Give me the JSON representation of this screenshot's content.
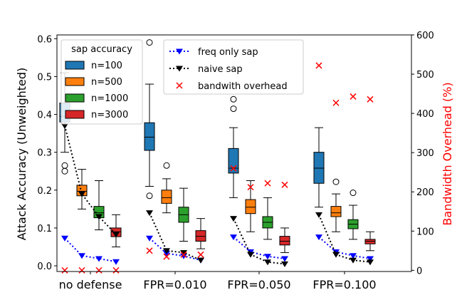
{
  "chart_data": {
    "type": "box",
    "categories": [
      "no defense",
      "FPR=0.010",
      "FPR=0.050",
      "FPR=0.100"
    ],
    "ylabel": "Attack Accuracy (Unweighted)",
    "y2label": "Bandwidth Overhead (%)",
    "ylim": [
      -0.015,
      0.61
    ],
    "y2lim": [
      -3,
      600
    ],
    "yticks": [
      "0.0",
      "0.1",
      "0.2",
      "0.3",
      "0.4",
      "0.5",
      "0.6"
    ],
    "y2ticks": [
      "0",
      "100",
      "200",
      "300",
      "400",
      "500",
      "600"
    ],
    "legend_box_title": "sap accuracy",
    "box_series": [
      {
        "name": "n=100",
        "color": "#1f77b4",
        "boxes": [
          {
            "whislo": 0.3,
            "q1": 0.38,
            "med": 0.395,
            "q3": 0.43,
            "whishi": 0.51,
            "fliers": [
              0.25,
              0.265
            ]
          },
          {
            "whislo": 0.21,
            "q1": 0.305,
            "med": 0.34,
            "q3": 0.378,
            "whishi": 0.48,
            "fliers": [
              0.185,
              0.59
            ]
          },
          {
            "whislo": 0.18,
            "q1": 0.245,
            "med": 0.258,
            "q3": 0.31,
            "whishi": 0.365,
            "fliers": [
              0.415,
              0.44
            ]
          },
          {
            "whislo": 0.155,
            "q1": 0.218,
            "med": 0.258,
            "q3": 0.3,
            "whishi": 0.365,
            "fliers": []
          }
        ]
      },
      {
        "name": "n=500",
        "color": "#ff7f0e",
        "boxes": [
          {
            "whislo": 0.15,
            "q1": 0.185,
            "med": 0.197,
            "q3": 0.213,
            "whishi": 0.255,
            "fliers": []
          },
          {
            "whislo": 0.14,
            "q1": 0.165,
            "med": 0.18,
            "q3": 0.2,
            "whishi": 0.23,
            "fliers": [
              0.265
            ]
          },
          {
            "whislo": 0.09,
            "q1": 0.138,
            "med": 0.155,
            "q3": 0.175,
            "whishi": 0.225,
            "fliers": []
          },
          {
            "whislo": 0.09,
            "q1": 0.13,
            "med": 0.14,
            "q3": 0.157,
            "whishi": 0.19,
            "fliers": [
              0.222
            ]
          }
        ]
      },
      {
        "name": "n=1000",
        "color": "#2ca02c",
        "boxes": [
          {
            "whislo": 0.095,
            "q1": 0.127,
            "med": 0.14,
            "q3": 0.157,
            "whishi": 0.225,
            "fliers": []
          },
          {
            "whislo": 0.065,
            "q1": 0.115,
            "med": 0.135,
            "q3": 0.155,
            "whishi": 0.205,
            "fliers": []
          },
          {
            "whislo": 0.07,
            "q1": 0.1,
            "med": 0.115,
            "q3": 0.13,
            "whishi": 0.18,
            "fliers": []
          },
          {
            "whislo": 0.07,
            "q1": 0.098,
            "med": 0.11,
            "q3": 0.122,
            "whishi": 0.16,
            "fliers": [
              0.193
            ]
          }
        ]
      },
      {
        "name": "n=3000",
        "color": "#d62728",
        "boxes": [
          {
            "whislo": 0.05,
            "q1": 0.077,
            "med": 0.09,
            "q3": 0.1,
            "whishi": 0.135,
            "fliers": []
          },
          {
            "whislo": 0.045,
            "q1": 0.065,
            "med": 0.078,
            "q3": 0.093,
            "whishi": 0.125,
            "fliers": []
          },
          {
            "whislo": 0.035,
            "q1": 0.055,
            "med": 0.065,
            "q3": 0.078,
            "whishi": 0.1,
            "fliers": []
          },
          {
            "whislo": 0.04,
            "q1": 0.058,
            "med": 0.065,
            "q3": 0.07,
            "whishi": 0.09,
            "fliers": []
          }
        ]
      }
    ],
    "line_series": [
      {
        "name": "freq only sap",
        "color": "#0000ff",
        "marker": "triangle-down",
        "values": [
          [
            0.073,
            0.027,
            0.019,
            0.011
          ],
          [
            0.073,
            0.033,
            0.026,
            0.015
          ],
          [
            0.076,
            0.037,
            0.025,
            0.019
          ],
          [
            0.076,
            0.037,
            0.027,
            0.019
          ]
        ]
      },
      {
        "name": "naive sap",
        "color": "#000000",
        "marker": "triangle-down",
        "values": [
          [
            0.37,
            0.19,
            0.13,
            0.083
          ],
          [
            0.14,
            0.04,
            0.035,
            0.015
          ],
          [
            0.125,
            0.03,
            0.01,
            0.005
          ],
          [
            0.135,
            0.03,
            0.015,
            0.01
          ]
        ]
      }
    ],
    "overhead_series": {
      "name": "bandwith overhead",
      "color": "#ff0000",
      "values": [
        [
          0,
          0,
          0,
          0
        ],
        [
          50,
          35,
          40,
          40
        ],
        [
          260,
          212,
          222,
          218
        ],
        [
          522,
          427,
          443,
          436
        ]
      ]
    }
  }
}
